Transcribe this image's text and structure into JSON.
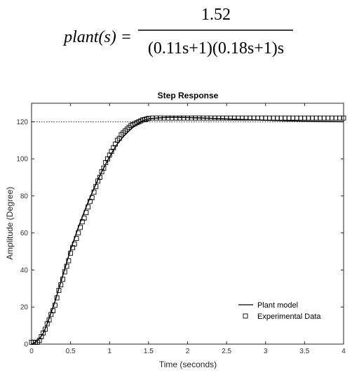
{
  "equation": {
    "lhs": "plant(s) =",
    "numerator": "1.52",
    "denominator": "(0.11s+1)(0.18s+1)s"
  },
  "chart_data": {
    "type": "line",
    "title": "Step Response",
    "xlabel": "Time (seconds)",
    "ylabel": "Amplitude (Degree)",
    "xlim": [
      0,
      4
    ],
    "ylim": [
      0,
      130
    ],
    "xticks": [
      "0",
      "0.5",
      "1",
      "1.5",
      "2",
      "2.5",
      "3",
      "3.5",
      "4"
    ],
    "yticks": [
      "0",
      "20",
      "40",
      "60",
      "80",
      "100",
      "120"
    ],
    "reference_line": {
      "y": 120,
      "style": "dotted"
    },
    "legend_position": "bottom-right",
    "series": [
      {
        "name": "Plant model",
        "style": "solid-line",
        "color": "#000000",
        "x": [
          0,
          0.05,
          0.1,
          0.15,
          0.2,
          0.25,
          0.3,
          0.35,
          0.4,
          0.45,
          0.5,
          0.55,
          0.6,
          0.7,
          0.8,
          0.9,
          1.0,
          1.1,
          1.2,
          1.3,
          1.4,
          1.5,
          1.6,
          1.7,
          1.8,
          2.0,
          2.2,
          2.5,
          3.0,
          3.5,
          4.0
        ],
        "y": [
          0,
          1,
          3,
          6,
          11,
          17,
          23,
          30,
          37,
          44,
          51,
          57,
          63,
          74,
          84,
          93,
          101,
          108,
          113,
          117,
          120,
          121.5,
          122,
          122.3,
          122.4,
          122.3,
          122,
          121.5,
          120.8,
          120.3,
          120
        ]
      },
      {
        "name": "Experimental Data",
        "style": "square-markers",
        "color": "#000000",
        "x": [
          0.0,
          0.025,
          0.05,
          0.075,
          0.1,
          0.125,
          0.15,
          0.175,
          0.2,
          0.225,
          0.25,
          0.275,
          0.3,
          0.325,
          0.35,
          0.375,
          0.4,
          0.425,
          0.45,
          0.475,
          0.5,
          0.525,
          0.55,
          0.575,
          0.6,
          0.625,
          0.65,
          0.675,
          0.7,
          0.725,
          0.75,
          0.775,
          0.8,
          0.825,
          0.85,
          0.875,
          0.9,
          0.925,
          0.95,
          0.975,
          1.0,
          1.025,
          1.05,
          1.075,
          1.1,
          1.125,
          1.15,
          1.175,
          1.2,
          1.225,
          1.25,
          1.275,
          1.3,
          1.325,
          1.35,
          1.375,
          1.4,
          1.425,
          1.45,
          1.475,
          1.5,
          1.55,
          1.6,
          1.65,
          1.7,
          1.75,
          1.8,
          1.85,
          1.9,
          1.95,
          2.0,
          2.05,
          2.1,
          2.15,
          2.2,
          2.25,
          2.3,
          2.35,
          2.4,
          2.45,
          2.5,
          2.55,
          2.6,
          2.65,
          2.7,
          2.75,
          2.8,
          2.85,
          2.9,
          2.95,
          3.0,
          3.05,
          3.1,
          3.15,
          3.2,
          3.25,
          3.3,
          3.35,
          3.4,
          3.45,
          3.5,
          3.55,
          3.6,
          3.65,
          3.7,
          3.75,
          3.8,
          3.85,
          3.9,
          3.95,
          4.0
        ],
        "y": [
          1,
          1,
          1,
          1,
          2,
          4,
          6,
          8,
          11,
          13,
          16,
          18,
          21,
          25,
          29,
          32,
          35,
          39,
          42,
          45,
          49,
          52,
          54,
          57,
          60,
          63,
          66,
          68,
          71,
          74,
          77,
          79,
          82,
          85,
          88,
          90,
          93,
          95,
          98,
          100,
          102,
          104,
          106,
          108,
          110,
          111,
          113,
          114,
          115,
          116,
          117,
          118,
          118.5,
          119,
          119.5,
          120,
          120.5,
          121,
          121.2,
          121.5,
          121.8,
          122,
          122,
          122,
          122,
          122,
          122,
          122,
          122,
          122,
          122,
          122,
          122,
          122,
          122,
          122,
          122,
          122,
          122,
          122,
          122,
          122,
          122,
          122,
          122,
          122,
          122,
          122,
          122,
          122,
          122,
          122,
          122,
          122,
          122,
          122,
          122,
          122,
          122,
          122,
          122,
          122,
          122,
          122,
          122,
          122,
          122,
          122,
          122,
          122,
          122
        ]
      }
    ]
  }
}
